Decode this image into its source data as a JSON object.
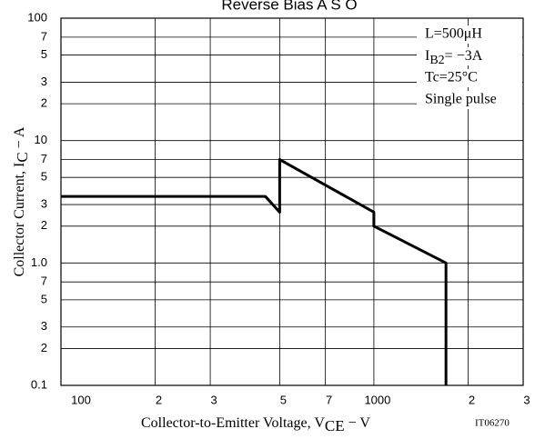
{
  "chart_data": {
    "type": "line",
    "title": "Reverse Bias A S O",
    "x_label": [
      "Collector-to-Emitter Voltage, V",
      "CE",
      " − V"
    ],
    "y_label": [
      "Collector Current, I",
      "C",
      " − A"
    ],
    "code": "IT06270",
    "annotations": [
      "L=500μH",
      [
        "I",
        "B2",
        "= −3A"
      ],
      "Tc=25°C",
      "Single pulse"
    ],
    "log_x": true,
    "log_y": true,
    "grid": true,
    "xlim": [
      100,
      3000
    ],
    "xticks": [
      100,
      {
        "value": 200,
        "label": "2"
      },
      {
        "value": 300,
        "label": "3"
      },
      {
        "value": 500,
        "label": "5"
      },
      {
        "value": 700,
        "label": "7"
      },
      1000,
      {
        "value": 2000,
        "label": "2"
      },
      {
        "value": 3000,
        "label": "3"
      }
    ],
    "ylim": [
      0.1,
      100
    ],
    "yticks": [
      0.1,
      {
        "value": 0.2,
        "label": "2"
      },
      {
        "value": 0.3,
        "label": "3"
      },
      {
        "value": 0.5,
        "label": "5"
      },
      {
        "value": 0.7,
        "label": "7"
      },
      {
        "value": 1,
        "label": "1.0"
      },
      2,
      3,
      5,
      7,
      10,
      {
        "value": 20,
        "label": "2"
      },
      {
        "value": 30,
        "label": "3"
      },
      {
        "value": 50,
        "label": "5"
      },
      {
        "value": 70,
        "label": "7"
      },
      100
    ],
    "series": [
      {
        "color": "#000000",
        "x": [
          100,
          450,
          500,
          500,
          1000,
          1000,
          1700,
          1700
        ],
        "values": [
          3.5,
          3.5,
          2.6,
          7,
          2.6,
          2,
          1,
          0.1
        ]
      }
    ]
  }
}
